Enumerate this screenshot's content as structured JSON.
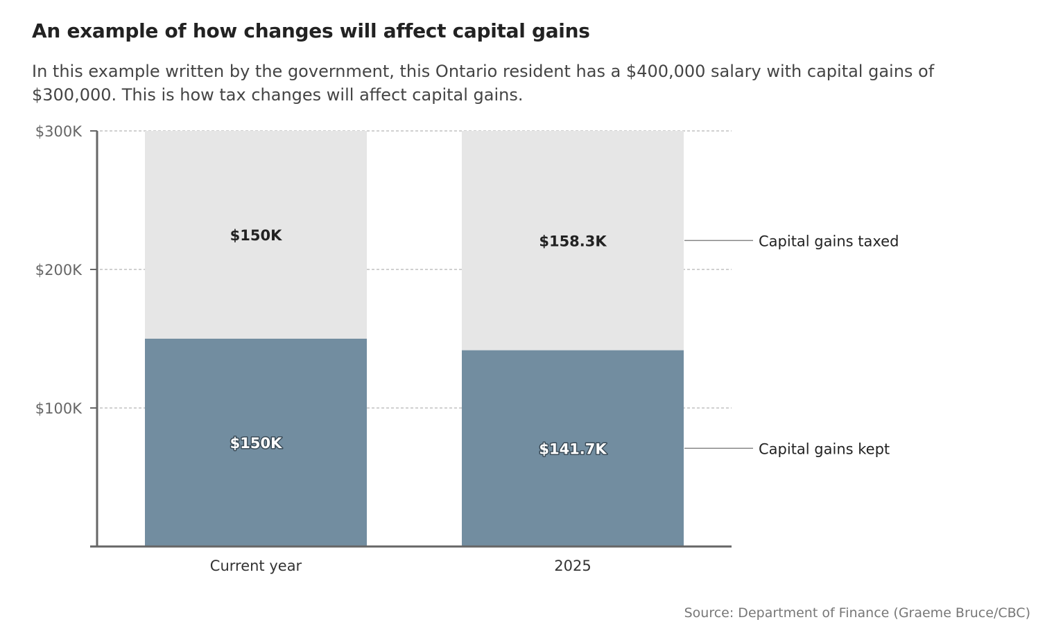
{
  "title": "An example of how changes will affect capital gains",
  "subtitle": "In this example written by the government, this Ontario resident has a $400,000 salary with capital gains of $300,000. This is how tax changes will affect capital gains.",
  "source": "Source: Department of Finance (Graeme Bruce/CBC)",
  "chart_data": {
    "type": "bar",
    "stacked": true,
    "categories": [
      "Current year",
      "2025"
    ],
    "series": [
      {
        "name": "Capital gains kept",
        "values": [
          150,
          141.7
        ],
        "labels": [
          "$150K",
          "$141.7K"
        ],
        "color": "#728da0"
      },
      {
        "name": "Capital gains taxed",
        "values": [
          150,
          158.3
        ],
        "labels": [
          "$150K",
          "$158.3K"
        ],
        "color": "#e6e6e6"
      }
    ],
    "ylim": [
      0,
      300
    ],
    "yticks": [
      100,
      200,
      300
    ],
    "ytick_labels": [
      "$100K",
      "$200K",
      "$300K"
    ],
    "xlabel": "",
    "ylabel": "",
    "grid": true,
    "legend": "right"
  }
}
